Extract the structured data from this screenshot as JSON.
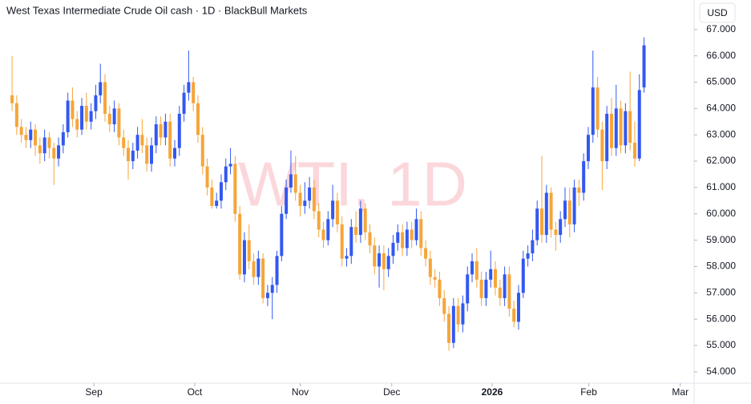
{
  "chart_data": {
    "type": "candlestick",
    "title": "West Texas Intermediate Crude Oil cash · 1D · BlackBull Markets",
    "watermark": "WTI, 1D",
    "currency": "USD",
    "up_color": "#3358f0",
    "down_color": "#f6a53a",
    "ylim": [
      53.57,
      68.12
    ],
    "yticks": [
      {
        "value": 54,
        "label": "54.000"
      },
      {
        "value": 55,
        "label": "55.000"
      },
      {
        "value": 56,
        "label": "56.000"
      },
      {
        "value": 57,
        "label": "57.000"
      },
      {
        "value": 58,
        "label": "58.000"
      },
      {
        "value": 59,
        "label": "59.000"
      },
      {
        "value": 60,
        "label": "60.000"
      },
      {
        "value": 61,
        "label": "61.000"
      },
      {
        "value": 62,
        "label": "62.000"
      },
      {
        "value": 63,
        "label": "63.000"
      },
      {
        "value": 64,
        "label": "64.000"
      },
      {
        "value": 65,
        "label": "65.000"
      },
      {
        "value": 66,
        "label": "66.000"
      },
      {
        "value": 67,
        "label": "67.000"
      }
    ],
    "xlim": [
      -2.6,
      146.6
    ],
    "xticks": [
      {
        "value": 17.6,
        "label": "Sep"
      },
      {
        "value": 39.3,
        "label": "Oct"
      },
      {
        "value": 62,
        "label": "Nov"
      },
      {
        "value": 81.7,
        "label": "Dec"
      },
      {
        "value": 103.3,
        "label": "2026"
      },
      {
        "value": 124.1,
        "label": "Feb"
      },
      {
        "value": 143.8,
        "label": "Mar"
      }
    ],
    "candles": [
      [
        64.5,
        66.0,
        63.9,
        64.2
      ],
      [
        64.2,
        64.5,
        63.0,
        63.3
      ],
      [
        63.3,
        63.6,
        62.7,
        63.0
      ],
      [
        63.0,
        63.3,
        62.5,
        62.8
      ],
      [
        62.8,
        63.5,
        62.5,
        63.2
      ],
      [
        63.2,
        63.4,
        62.2,
        62.6
      ],
      [
        62.6,
        62.9,
        61.9,
        62.3
      ],
      [
        62.3,
        63.2,
        62.0,
        62.9
      ],
      [
        62.9,
        63.1,
        62.1,
        62.5
      ],
      [
        62.5,
        62.7,
        61.1,
        62.1
      ],
      [
        62.1,
        62.9,
        61.8,
        62.6
      ],
      [
        62.6,
        63.4,
        62.3,
        63.1
      ],
      [
        63.1,
        64.6,
        62.9,
        64.3
      ],
      [
        64.3,
        64.8,
        63.3,
        63.6
      ],
      [
        63.6,
        63.9,
        62.9,
        63.2
      ],
      [
        63.2,
        64.4,
        63.0,
        64.1
      ],
      [
        64.1,
        64.6,
        63.2,
        63.5
      ],
      [
        63.5,
        64.2,
        63.2,
        63.9
      ],
      [
        63.9,
        64.9,
        63.6,
        64.5
      ],
      [
        64.5,
        65.7,
        64.2,
        65.0
      ],
      [
        65.0,
        65.3,
        63.5,
        63.8
      ],
      [
        63.8,
        64.1,
        63.1,
        63.4
      ],
      [
        63.4,
        64.3,
        63.1,
        64.0
      ],
      [
        64.0,
        64.2,
        62.6,
        62.9
      ],
      [
        62.9,
        63.2,
        62.2,
        62.5
      ],
      [
        62.5,
        62.8,
        61.3,
        62.0
      ],
      [
        62.0,
        62.7,
        61.7,
        62.4
      ],
      [
        62.4,
        63.3,
        62.1,
        63.0
      ],
      [
        63.0,
        63.6,
        62.3,
        62.6
      ],
      [
        62.6,
        62.9,
        61.6,
        61.9
      ],
      [
        61.9,
        62.9,
        61.6,
        62.6
      ],
      [
        62.6,
        63.7,
        62.3,
        63.4
      ],
      [
        63.4,
        63.7,
        62.6,
        62.9
      ],
      [
        62.9,
        63.8,
        62.6,
        63.5
      ],
      [
        63.5,
        63.8,
        61.8,
        62.1
      ],
      [
        62.1,
        62.8,
        61.8,
        62.5
      ],
      [
        62.5,
        64.1,
        62.2,
        63.8
      ],
      [
        63.8,
        64.9,
        63.5,
        64.6
      ],
      [
        64.6,
        66.2,
        64.3,
        65.0
      ],
      [
        65.0,
        65.2,
        63.9,
        64.2
      ],
      [
        64.2,
        64.5,
        62.7,
        63.0
      ],
      [
        63.0,
        63.3,
        61.5,
        61.8
      ],
      [
        61.8,
        62.1,
        60.7,
        61.0
      ],
      [
        61.0,
        61.3,
        60.2,
        60.3
      ],
      [
        60.3,
        60.8,
        60.2,
        60.5
      ],
      [
        60.5,
        61.5,
        60.2,
        61.2
      ],
      [
        61.2,
        62.1,
        60.9,
        61.8
      ],
      [
        61.8,
        62.5,
        61.5,
        61.9
      ],
      [
        61.9,
        62.2,
        59.7,
        60.0
      ],
      [
        60.0,
        60.3,
        57.5,
        57.7
      ],
      [
        57.7,
        59.3,
        57.4,
        59.0
      ],
      [
        59.0,
        59.6,
        57.9,
        58.2
      ],
      [
        58.2,
        58.5,
        57.3,
        57.6
      ],
      [
        57.6,
        58.6,
        57.3,
        58.3
      ],
      [
        58.3,
        58.5,
        56.6,
        56.8
      ],
      [
        56.8,
        57.3,
        56.5,
        57.0
      ],
      [
        57.0,
        57.6,
        56.0,
        57.3
      ],
      [
        57.3,
        58.6,
        57.0,
        58.4
      ],
      [
        58.4,
        60.3,
        58.2,
        60.0
      ],
      [
        60.0,
        61.3,
        59.8,
        61.0
      ],
      [
        61.0,
        62.4,
        60.8,
        61.5
      ],
      [
        61.5,
        62.2,
        60.5,
        60.8
      ],
      [
        60.8,
        61.1,
        59.9,
        60.3
      ],
      [
        60.3,
        61.2,
        60.0,
        60.5
      ],
      [
        60.5,
        61.4,
        60.2,
        61.0
      ],
      [
        61.0,
        61.3,
        59.8,
        60.1
      ],
      [
        60.1,
        60.4,
        59.1,
        59.4
      ],
      [
        59.4,
        59.7,
        58.7,
        59.0
      ],
      [
        59.0,
        60.1,
        58.8,
        59.8
      ],
      [
        59.8,
        61.1,
        59.5,
        60.5
      ],
      [
        60.5,
        60.8,
        59.3,
        59.6
      ],
      [
        59.6,
        59.9,
        58.0,
        58.3
      ],
      [
        58.3,
        58.7,
        58.0,
        58.4
      ],
      [
        58.4,
        59.8,
        58.1,
        59.5
      ],
      [
        59.5,
        60.1,
        58.9,
        59.2
      ],
      [
        59.2,
        60.5,
        58.9,
        60.2
      ],
      [
        60.2,
        60.4,
        59.0,
        59.3
      ],
      [
        59.3,
        59.6,
        58.5,
        58.8
      ],
      [
        58.8,
        59.1,
        57.7,
        58.0
      ],
      [
        58.0,
        58.8,
        57.2,
        58.5
      ],
      [
        58.5,
        58.8,
        57.1,
        57.9
      ],
      [
        57.9,
        58.7,
        57.6,
        58.4
      ],
      [
        58.4,
        59.2,
        58.1,
        58.9
      ],
      [
        58.9,
        59.6,
        58.6,
        59.3
      ],
      [
        59.3,
        59.6,
        58.4,
        58.7
      ],
      [
        58.7,
        59.7,
        58.4,
        59.4
      ],
      [
        59.4,
        59.7,
        58.7,
        59.0
      ],
      [
        59.0,
        60.2,
        58.8,
        59.8
      ],
      [
        59.8,
        60.1,
        58.4,
        58.7
      ],
      [
        58.7,
        59.0,
        58.0,
        58.3
      ],
      [
        58.3,
        58.6,
        57.3,
        57.6
      ],
      [
        57.6,
        57.9,
        57.2,
        57.5
      ],
      [
        57.5,
        57.8,
        56.5,
        56.8
      ],
      [
        56.8,
        57.1,
        55.9,
        56.2
      ],
      [
        56.2,
        56.5,
        54.8,
        55.1
      ],
      [
        55.1,
        56.8,
        54.9,
        56.5
      ],
      [
        56.5,
        56.8,
        55.5,
        55.8
      ],
      [
        55.8,
        56.9,
        55.5,
        56.6
      ],
      [
        56.6,
        58.0,
        56.3,
        57.7
      ],
      [
        57.7,
        58.5,
        57.4,
        58.2
      ],
      [
        58.2,
        58.7,
        57.2,
        57.5
      ],
      [
        57.5,
        57.8,
        56.5,
        56.8
      ],
      [
        56.8,
        57.8,
        56.5,
        57.5
      ],
      [
        57.5,
        58.6,
        57.2,
        57.9
      ],
      [
        57.9,
        58.2,
        56.9,
        57.2
      ],
      [
        57.2,
        57.5,
        56.5,
        56.8
      ],
      [
        56.8,
        58.0,
        56.5,
        57.7
      ],
      [
        57.7,
        58.0,
        56.1,
        56.4
      ],
      [
        56.4,
        56.7,
        55.7,
        55.9
      ],
      [
        55.9,
        57.3,
        55.6,
        57.0
      ],
      [
        57.0,
        58.6,
        56.8,
        58.3
      ],
      [
        58.3,
        58.8,
        58.0,
        58.5
      ],
      [
        58.5,
        59.4,
        58.2,
        59.0
      ],
      [
        59.0,
        60.5,
        58.8,
        60.2
      ],
      [
        60.2,
        62.2,
        58.9,
        59.2
      ],
      [
        59.2,
        61.1,
        58.9,
        60.8
      ],
      [
        60.8,
        61.0,
        59.1,
        59.4
      ],
      [
        59.4,
        59.7,
        58.6,
        59.2
      ],
      [
        59.2,
        60.1,
        58.9,
        59.8
      ],
      [
        59.8,
        61.0,
        59.5,
        60.5
      ],
      [
        60.5,
        61.0,
        59.1,
        59.6
      ],
      [
        59.6,
        61.3,
        59.3,
        61.0
      ],
      [
        61.0,
        61.3,
        60.3,
        60.8
      ],
      [
        60.8,
        62.3,
        60.5,
        62.0
      ],
      [
        62.0,
        63.3,
        61.7,
        63.0
      ],
      [
        63.0,
        66.2,
        62.7,
        64.8
      ],
      [
        64.8,
        65.2,
        62.9,
        63.2
      ],
      [
        63.2,
        63.5,
        60.9,
        62.0
      ],
      [
        62.0,
        64.1,
        61.7,
        63.8
      ],
      [
        63.8,
        64.4,
        62.2,
        62.5
      ],
      [
        62.5,
        64.9,
        62.2,
        64.0
      ],
      [
        64.0,
        64.3,
        62.3,
        62.6
      ],
      [
        62.6,
        64.2,
        62.3,
        63.9
      ],
      [
        63.9,
        65.4,
        62.4,
        62.7
      ],
      [
        62.7,
        63.5,
        61.8,
        62.1
      ],
      [
        62.1,
        65.3,
        62.0,
        64.7
      ],
      [
        64.8,
        66.7,
        64.6,
        66.4
      ]
    ]
  }
}
